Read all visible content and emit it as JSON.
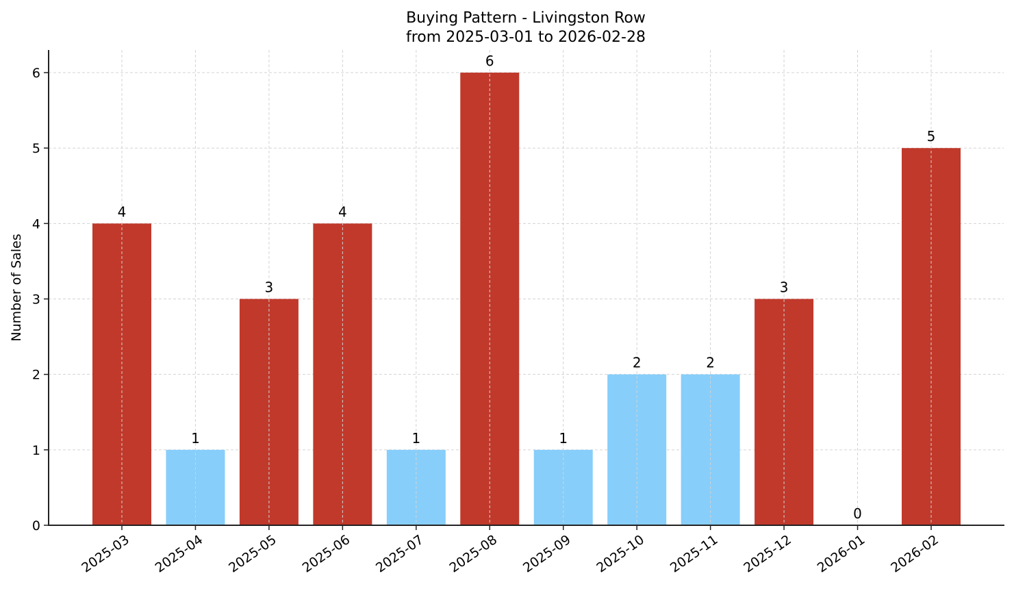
{
  "chart_data": {
    "type": "bar",
    "title": "Buying Pattern - Livingston Row",
    "subtitle": "from 2025-03-01 to 2026-02-28",
    "xlabel": "",
    "ylabel": "Number of Sales",
    "categories": [
      "2025-03",
      "2025-04",
      "2025-05",
      "2025-06",
      "2025-07",
      "2025-08",
      "2025-09",
      "2025-10",
      "2025-11",
      "2025-12",
      "2026-01",
      "2026-02"
    ],
    "values": [
      4,
      1,
      3,
      4,
      1,
      6,
      1,
      2,
      2,
      3,
      0,
      5
    ],
    "bar_colors": [
      "#C0392B",
      "#87CEFA",
      "#C0392B",
      "#C0392B",
      "#87CEFA",
      "#C0392B",
      "#87CEFA",
      "#87CEFA",
      "#87CEFA",
      "#C0392B",
      "#87CEFA",
      "#C0392B"
    ],
    "colors": {
      "high": "#C0392B",
      "low": "#87CEFA"
    },
    "ylim": [
      0,
      6.3
    ],
    "yticks": [
      0,
      1,
      2,
      3,
      4,
      5,
      6
    ],
    "grid": true,
    "grid_style": "dashed",
    "legend": null,
    "data_labels": true,
    "xtick_rotation": 35
  }
}
